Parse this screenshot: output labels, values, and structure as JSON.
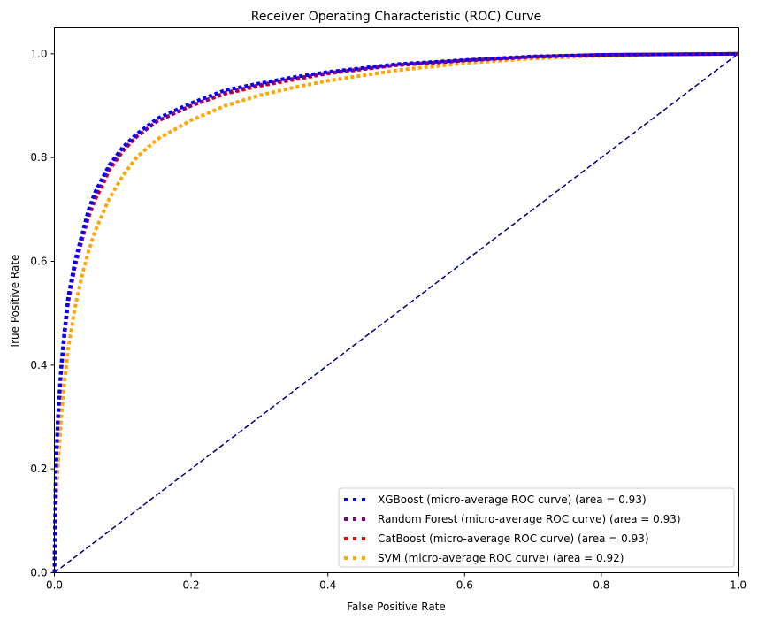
{
  "chart_data": {
    "type": "line",
    "title": "Receiver Operating Characteristic (ROC) Curve",
    "xlabel": "False Positive Rate",
    "ylabel": "True Positive Rate",
    "xlim": [
      0.0,
      1.0
    ],
    "ylim": [
      0.0,
      1.05
    ],
    "x_ticks": [
      "0.0",
      "0.2",
      "0.4",
      "0.6",
      "0.8",
      "1.0"
    ],
    "y_ticks": [
      "0.0",
      "0.2",
      "0.4",
      "0.6",
      "0.8",
      "1.0"
    ],
    "grid": false,
    "legend_position": "lower-right",
    "reference_line": {
      "x": [
        0,
        1
      ],
      "y": [
        0,
        1
      ],
      "color": "#000080",
      "style": "dashed"
    },
    "series": [
      {
        "name": "XGBoost (micro-average ROC curve) (area = 0.93)",
        "color": "#0000ff",
        "x": [
          0,
          0.002,
          0.005,
          0.01,
          0.015,
          0.02,
          0.03,
          0.04,
          0.05,
          0.06,
          0.07,
          0.08,
          0.1,
          0.12,
          0.15,
          0.2,
          0.25,
          0.3,
          0.35,
          0.4,
          0.5,
          0.6,
          0.7,
          0.8,
          0.9,
          1.0
        ],
        "y": [
          0,
          0.2,
          0.3,
          0.4,
          0.47,
          0.53,
          0.6,
          0.65,
          0.7,
          0.735,
          0.76,
          0.785,
          0.82,
          0.845,
          0.875,
          0.905,
          0.93,
          0.943,
          0.955,
          0.965,
          0.98,
          0.988,
          0.995,
          0.998,
          0.999,
          1.0
        ]
      },
      {
        "name": "Random Forest (micro-average ROC curve) (area = 0.93)",
        "color": "#800080",
        "x": [
          0,
          0.002,
          0.005,
          0.01,
          0.015,
          0.02,
          0.03,
          0.04,
          0.05,
          0.06,
          0.07,
          0.08,
          0.1,
          0.12,
          0.15,
          0.2,
          0.25,
          0.3,
          0.35,
          0.4,
          0.5,
          0.6,
          0.7,
          0.8,
          0.9,
          1.0
        ],
        "y": [
          0,
          0.19,
          0.29,
          0.39,
          0.46,
          0.52,
          0.59,
          0.64,
          0.69,
          0.725,
          0.75,
          0.78,
          0.815,
          0.84,
          0.87,
          0.9,
          0.925,
          0.94,
          0.952,
          0.963,
          0.978,
          0.987,
          0.994,
          0.998,
          0.999,
          1.0
        ]
      },
      {
        "name": "CatBoost (micro-average ROC curve) (area = 0.93)",
        "color": "#ff0000",
        "x": [
          0,
          0.002,
          0.005,
          0.01,
          0.015,
          0.02,
          0.03,
          0.04,
          0.05,
          0.06,
          0.07,
          0.08,
          0.1,
          0.12,
          0.15,
          0.2,
          0.25,
          0.3,
          0.35,
          0.4,
          0.5,
          0.6,
          0.7,
          0.8,
          0.9,
          1.0
        ],
        "y": [
          0,
          0.19,
          0.29,
          0.39,
          0.46,
          0.52,
          0.59,
          0.64,
          0.685,
          0.72,
          0.745,
          0.775,
          0.812,
          0.84,
          0.87,
          0.9,
          0.923,
          0.938,
          0.95,
          0.962,
          0.978,
          0.987,
          0.994,
          0.998,
          0.999,
          1.0
        ]
      },
      {
        "name": "SVM (micro-average ROC curve) (area = 0.92)",
        "color": "#ffa500",
        "x": [
          0,
          0.002,
          0.005,
          0.01,
          0.015,
          0.02,
          0.03,
          0.04,
          0.05,
          0.06,
          0.07,
          0.08,
          0.1,
          0.12,
          0.15,
          0.2,
          0.25,
          0.3,
          0.35,
          0.4,
          0.5,
          0.6,
          0.7,
          0.8,
          0.9,
          1.0
        ],
        "y": [
          0,
          0.12,
          0.2,
          0.3,
          0.37,
          0.43,
          0.51,
          0.57,
          0.62,
          0.66,
          0.69,
          0.72,
          0.765,
          0.8,
          0.835,
          0.872,
          0.9,
          0.92,
          0.935,
          0.948,
          0.968,
          0.982,
          0.991,
          0.996,
          0.999,
          1.0
        ]
      }
    ]
  }
}
